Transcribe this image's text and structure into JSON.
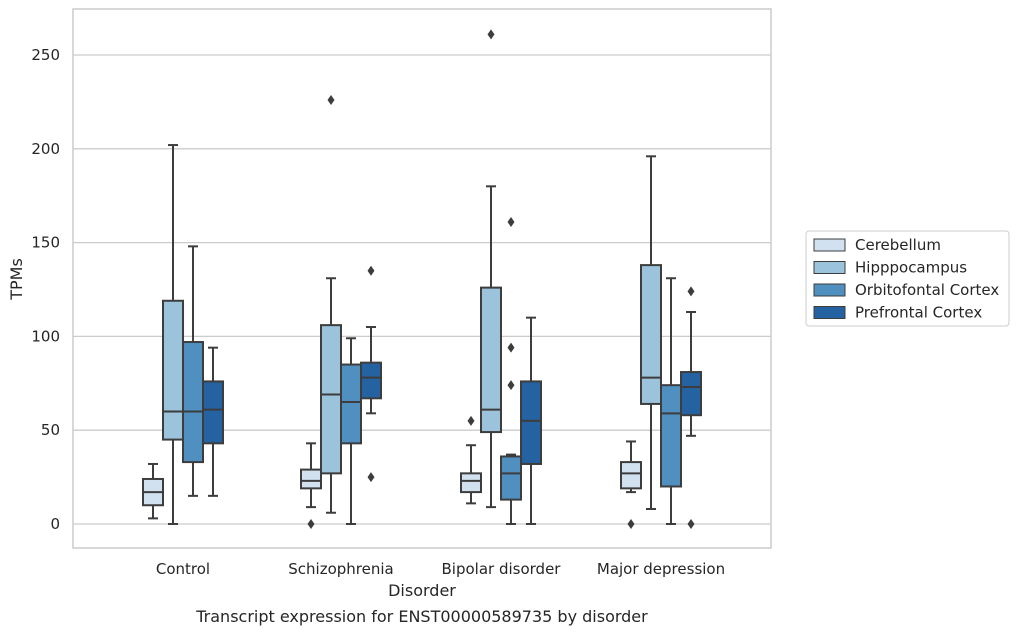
{
  "chart_data": {
    "type": "box",
    "caption": "Transcript expression for ENST00000589735 by disorder",
    "xlabel": "Disorder",
    "ylabel": "TPMs",
    "ylim": [
      -12,
      275
    ],
    "yticks": [
      0,
      50,
      100,
      150,
      200,
      250
    ],
    "grid": "horizontal",
    "legend_position": "right",
    "categories": [
      "Control",
      "Schizophrenia",
      "Bipolar disorder",
      "Major depression"
    ],
    "series": [
      {
        "name": "Cerebellum",
        "color": "#d1e1f0",
        "boxes": [
          {
            "whisker_low": 3,
            "q1": 10,
            "median": 17,
            "q3": 24,
            "whisker_high": 32,
            "outliers": []
          },
          {
            "whisker_low": 9,
            "q1": 19,
            "median": 23,
            "q3": 29,
            "whisker_high": 43,
            "outliers": [
              0
            ]
          },
          {
            "whisker_low": 11,
            "q1": 17,
            "median": 23,
            "q3": 27,
            "whisker_high": 42,
            "outliers": [
              55
            ]
          },
          {
            "whisker_low": 17,
            "q1": 19,
            "median": 27,
            "q3": 33,
            "whisker_high": 44,
            "outliers": [
              0
            ]
          }
        ]
      },
      {
        "name": "Hipppocampus",
        "color": "#9bc3dc",
        "boxes": [
          {
            "whisker_low": 0,
            "q1": 45,
            "median": 60,
            "q3": 119,
            "whisker_high": 202,
            "outliers": []
          },
          {
            "whisker_low": 6,
            "q1": 27,
            "median": 69,
            "q3": 106,
            "whisker_high": 131,
            "outliers": [
              226
            ]
          },
          {
            "whisker_low": 9,
            "q1": 49,
            "median": 61,
            "q3": 126,
            "whisker_high": 180,
            "outliers": [
              261
            ]
          },
          {
            "whisker_low": 8,
            "q1": 64,
            "median": 78,
            "q3": 138,
            "whisker_high": 196,
            "outliers": []
          }
        ]
      },
      {
        "name": "Orbitofontal Cortex",
        "color": "#4f90c0",
        "boxes": [
          {
            "whisker_low": 15,
            "q1": 33,
            "median": 60,
            "q3": 97,
            "whisker_high": 148,
            "outliers": []
          },
          {
            "whisker_low": 0,
            "q1": 43,
            "median": 65,
            "q3": 85,
            "whisker_high": 99,
            "outliers": []
          },
          {
            "whisker_low": 0,
            "q1": 13,
            "median": 27,
            "q3": 36,
            "whisker_high": 37,
            "outliers": [
              74,
              94,
              161
            ]
          },
          {
            "whisker_low": 0,
            "q1": 20,
            "median": 59,
            "q3": 74,
            "whisker_high": 131,
            "outliers": []
          }
        ]
      },
      {
        "name": "Prefrontal Cortex",
        "color": "#2462a2",
        "boxes": [
          {
            "whisker_low": 15,
            "q1": 43,
            "median": 61,
            "q3": 76,
            "whisker_high": 94,
            "outliers": []
          },
          {
            "whisker_low": 59,
            "q1": 67,
            "median": 78,
            "q3": 86,
            "whisker_high": 105,
            "outliers": [
              25,
              135
            ]
          },
          {
            "whisker_low": 0,
            "q1": 32,
            "median": 55,
            "q3": 76,
            "whisker_high": 110,
            "outliers": []
          },
          {
            "whisker_low": 47,
            "q1": 58,
            "median": 73,
            "q3": 81,
            "whisker_high": 113,
            "outliers": [
              0,
              124
            ]
          }
        ]
      }
    ]
  }
}
